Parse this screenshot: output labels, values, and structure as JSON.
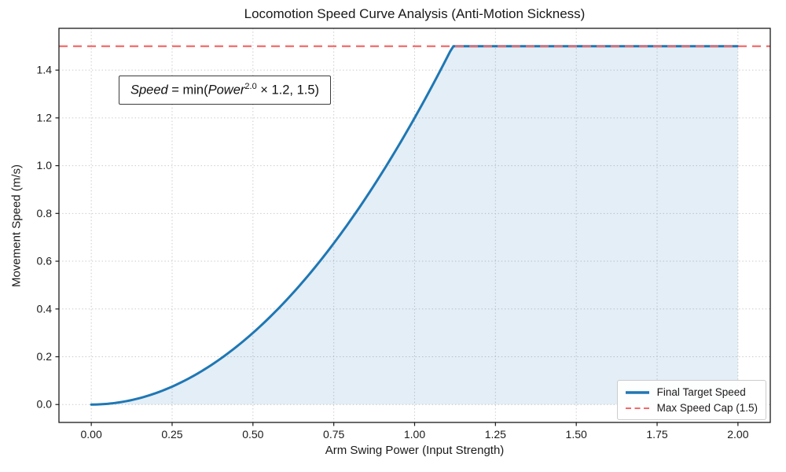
{
  "title": "Locomotion Speed Curve Analysis (Anti-Motion Sickness)",
  "chart_data": {
    "type": "line",
    "title": "Locomotion Speed Curve Analysis (Anti-Motion Sickness)",
    "xlabel": "Arm Swing Power (Input Strength)",
    "ylabel": "Movement Speed (m/s)",
    "xlim": [
      -0.1,
      2.1
    ],
    "ylim": [
      -0.075,
      1.575
    ],
    "x_tick_values": [
      0.0,
      0.25,
      0.5,
      0.75,
      1.0,
      1.25,
      1.5,
      1.75,
      2.0
    ],
    "x_tick_labels": [
      "0.00",
      "0.25",
      "0.50",
      "0.75",
      "1.00",
      "1.25",
      "1.50",
      "1.75",
      "2.00"
    ],
    "y_tick_values": [
      0.0,
      0.2,
      0.4,
      0.6,
      0.8,
      1.0,
      1.2,
      1.4
    ],
    "y_tick_labels": [
      "0.0",
      "0.2",
      "0.4",
      "0.6",
      "0.8",
      "1.0",
      "1.2",
      "1.4"
    ],
    "grid": "dotted",
    "grid_color": "#c9c9c9",
    "spine_color": "#1a1a1a",
    "legend_position": "lower right",
    "series": [
      {
        "name": "Final Target Speed",
        "type": "line",
        "color": "#1f77b4",
        "linewidth": 3,
        "fill_under": true,
        "fill_alpha": 0.12,
        "formula": "speed = min(power^2.0 * 1.2, 1.5)",
        "exponent": 2.0,
        "multiplier": 1.2,
        "cap": 1.5,
        "x": [
          0.0,
          0.1,
          0.2,
          0.3,
          0.4,
          0.5,
          0.6,
          0.7,
          0.8,
          0.9,
          1.0,
          1.1,
          1.118,
          1.2,
          1.3,
          1.4,
          1.5,
          1.6,
          1.7,
          1.8,
          1.9,
          2.0
        ],
        "y": [
          0.0,
          0.012,
          0.048,
          0.108,
          0.192,
          0.3,
          0.432,
          0.588,
          0.768,
          0.972,
          1.2,
          1.452,
          1.5,
          1.5,
          1.5,
          1.5,
          1.5,
          1.5,
          1.5,
          1.5,
          1.5,
          1.5
        ]
      },
      {
        "name": "Max Speed Cap (1.5)",
        "type": "hline",
        "y": 1.5,
        "color": "#f56a6a",
        "linestyle": "dashed",
        "linewidth": 2.2
      }
    ],
    "annotation": {
      "text": "Speed = min(Power^2.0 × 1.2, 1.5)",
      "lhs": "Speed",
      "mid": " = min(",
      "base": "Power",
      "sup": "2.0",
      "tail": " × 1.2, 1.5)"
    }
  },
  "legend": {
    "items": [
      {
        "label": "Final Target Speed"
      },
      {
        "label": "Max Speed Cap (1.5)"
      }
    ]
  }
}
